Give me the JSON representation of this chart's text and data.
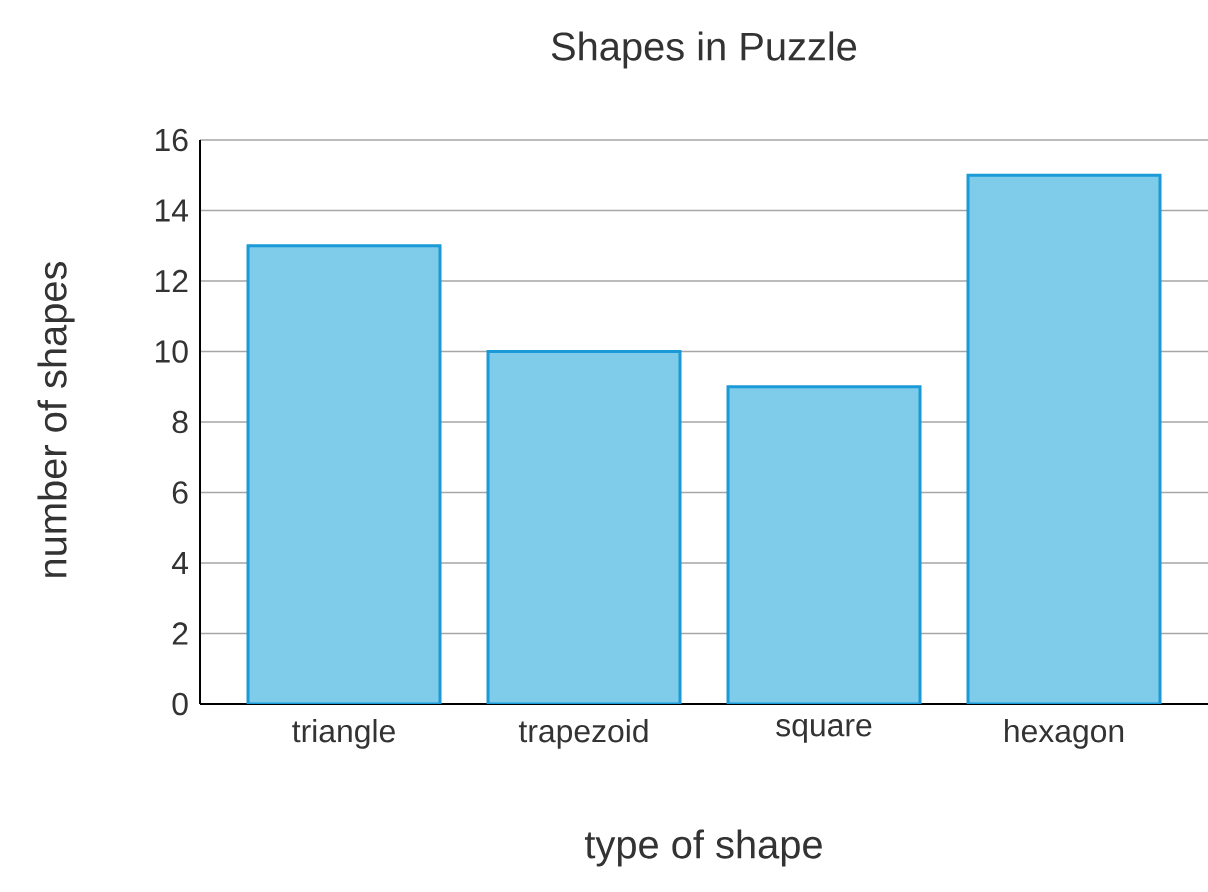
{
  "chart_data": {
    "type": "bar",
    "title": "Shapes in Puzzle",
    "xlabel": "type of shape",
    "ylabel": "number of shapes",
    "categories": [
      "triangle",
      "trapezoid",
      "square",
      "hexagon"
    ],
    "values": [
      13,
      10,
      9,
      15
    ],
    "color": "#7fcbea",
    "ylim": [
      0,
      16
    ],
    "yticks": [
      0,
      2,
      4,
      6,
      8,
      10,
      12,
      14,
      16
    ],
    "grid": "y"
  }
}
